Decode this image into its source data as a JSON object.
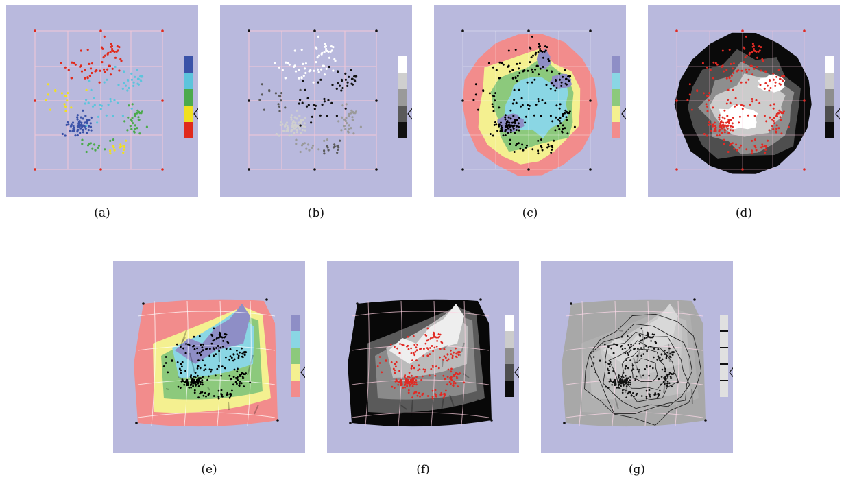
{
  "panels": [
    {
      "id": "a",
      "caption": "(a)",
      "style": "scatter",
      "point_color": "class",
      "legend": [
        "#3a52a8",
        "#5cc4dc",
        "#4caa4c",
        "#f0e020",
        "#e02a1c"
      ]
    },
    {
      "id": "b",
      "caption": "(b)",
      "style": "scatter",
      "point_color": "gray",
      "legend": [
        "#ffffff",
        "#cfcfcf",
        "#9a9a9a",
        "#5a5a5a",
        "#111111"
      ]
    },
    {
      "id": "c",
      "caption": "(c)",
      "style": "contour-color",
      "point_color": "#000000",
      "legend": [
        "#8e8ec6",
        "#8ad6e4",
        "#8cc97c",
        "#f4f090",
        "#f28c8c"
      ]
    },
    {
      "id": "d",
      "caption": "(d)",
      "style": "contour-gray",
      "point_color": "#e02a24",
      "legend": [
        "#ffffff",
        "#cccccc",
        "#8e8e8e",
        "#4e4e4e",
        "#0a0a0a"
      ]
    },
    {
      "id": "e",
      "caption": "(e)",
      "style": "surface-color",
      "point_color": "#000000",
      "legend": [
        "#8e8ec6",
        "#8ad6e4",
        "#8cc97c",
        "#f4f090",
        "#f28c8c"
      ]
    },
    {
      "id": "f",
      "caption": "(f)",
      "style": "surface-gray",
      "point_color": "#e02a24",
      "legend": [
        "#ffffff",
        "#cccccc",
        "#8e8e8e",
        "#4e4e4e",
        "#0a0a0a"
      ]
    },
    {
      "id": "g",
      "caption": "(g)",
      "style": "surface-lines",
      "point_color": "#111111",
      "legend": [
        "#e0e0e0",
        "#e0e0e0",
        "#e0e0e0",
        "#e0e0e0",
        "#e0e0e0"
      ]
    }
  ],
  "colors": {
    "background": "#b9b9dd",
    "grid": "#f2c6d8"
  }
}
